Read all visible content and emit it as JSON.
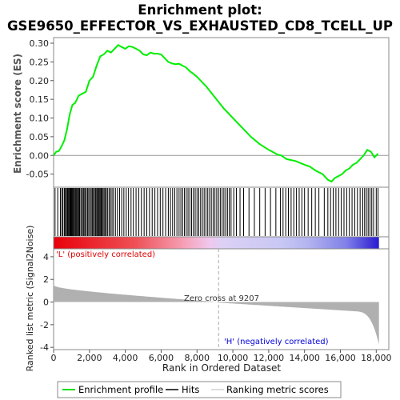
{
  "chart_data": {
    "type": "line",
    "title_line1": "Enrichment plot:",
    "title_line2": "GSE9650_EFFECTOR_VS_EXHAUSTED_CD8_TCELL_UP",
    "es_ylabel": "Enrichment score (ES)",
    "metric_ylabel": "Ranked list metric (Signal2Noise)",
    "xlabel": "Rank in Ordered Dataset",
    "xlim": [
      0,
      18700
    ],
    "es_ylim": [
      -0.085,
      0.315
    ],
    "metric_ylim": [
      -4.2,
      4.7
    ],
    "x_ticks": [
      0,
      2000,
      4000,
      6000,
      8000,
      10000,
      12000,
      14000,
      16000,
      18000
    ],
    "x_tick_labels": [
      "0",
      "2,000",
      "4,000",
      "6,000",
      "8,000",
      "10,000",
      "12,000",
      "14,000",
      "16,000",
      "18,000"
    ],
    "es_ticks": [
      -0.05,
      0.0,
      0.05,
      0.1,
      0.15,
      0.2,
      0.25,
      0.3
    ],
    "es_tick_labels": [
      "-0.05",
      "0.00",
      "0.05",
      "0.10",
      "0.15",
      "0.20",
      "0.25",
      "0.30"
    ],
    "metric_ticks": [
      -4,
      -2,
      0,
      2,
      4
    ],
    "metric_tick_labels": [
      "-4",
      "-2",
      "0",
      "2",
      "4"
    ],
    "zero_cross_rank": 9207,
    "zero_cross_label": "Zero cross at 9207",
    "pos_label": "'L' (positively correlated)",
    "neg_label": "'H' (negatively correlated)",
    "enrichment_profile": {
      "x": [
        0,
        150,
        300,
        450,
        600,
        750,
        900,
        1050,
        1200,
        1400,
        1600,
        1800,
        2000,
        2200,
        2400,
        2600,
        2800,
        3000,
        3200,
        3400,
        3600,
        3800,
        4000,
        4200,
        4400,
        4600,
        4800,
        5000,
        5200,
        5400,
        5600,
        5800,
        6000,
        6200,
        6400,
        6600,
        6800,
        7000,
        7200,
        7400,
        7600,
        7800,
        8000,
        8500,
        9000,
        9500,
        10000,
        10500,
        11000,
        11500,
        12000,
        12500,
        12700,
        13000,
        13500,
        14000,
        14300,
        14600,
        15000,
        15300,
        15500,
        15700,
        15900,
        16100,
        16300,
        16500,
        16700,
        16900,
        17100,
        17300,
        17500,
        17700,
        17900,
        18100
      ],
      "y": [
        0.0,
        0.01,
        0.012,
        0.025,
        0.04,
        0.07,
        0.11,
        0.135,
        0.14,
        0.16,
        0.165,
        0.17,
        0.2,
        0.21,
        0.24,
        0.265,
        0.27,
        0.28,
        0.275,
        0.285,
        0.295,
        0.29,
        0.285,
        0.292,
        0.29,
        0.285,
        0.28,
        0.27,
        0.268,
        0.275,
        0.272,
        0.272,
        0.27,
        0.26,
        0.25,
        0.246,
        0.244,
        0.245,
        0.24,
        0.235,
        0.225,
        0.218,
        0.21,
        0.185,
        0.155,
        0.125,
        0.1,
        0.075,
        0.05,
        0.03,
        0.015,
        0.002,
        0.0,
        -0.01,
        -0.015,
        -0.025,
        -0.03,
        -0.04,
        -0.05,
        -0.065,
        -0.07,
        -0.06,
        -0.055,
        -0.05,
        -0.04,
        -0.035,
        -0.025,
        -0.02,
        -0.01,
        0.0,
        0.015,
        0.01,
        -0.005,
        0.005
      ]
    },
    "hits": [
      80,
      230,
      380,
      460,
      520,
      600,
      660,
      700,
      760,
      800,
      850,
      900,
      940,
      980,
      1020,
      1060,
      1100,
      1150,
      1200,
      1250,
      1300,
      1350,
      1400,
      1450,
      1520,
      1580,
      1650,
      1700,
      1760,
      1830,
      1900,
      1960,
      2030,
      2100,
      2160,
      2220,
      2280,
      2340,
      2400,
      2450,
      2500,
      2550,
      2600,
      2650,
      2700,
      2760,
      2820,
      2880,
      2950,
      3020,
      3100,
      3180,
      3260,
      3340,
      3450,
      3560,
      3680,
      3800,
      3920,
      4050,
      4180,
      4320,
      4450,
      4600,
      4750,
      4900,
      5050,
      5200,
      5350,
      5500,
      5650,
      5800,
      5950,
      6100,
      6250,
      6400,
      6520,
      6640,
      6760,
      6880,
      7000,
      7100,
      7200,
      7300,
      7400,
      7500,
      7600,
      7700,
      7800,
      7900,
      8000,
      8100,
      8200,
      8300,
      8400,
      8500,
      8600,
      8700,
      8800,
      8900,
      9000,
      9100,
      9200,
      9300,
      9400,
      9500,
      9600,
      9700,
      9800,
      9900,
      10050,
      10200,
      10400,
      10600,
      10900,
      11200,
      11500,
      11800,
      12100,
      12400,
      12650,
      12800,
      12950,
      13100,
      13250,
      13400,
      13550,
      13700,
      13850,
      14000,
      14200,
      14400,
      14600,
      14800,
      15100,
      15300,
      15450,
      15600,
      15750,
      15900,
      16050,
      16200,
      16350,
      16500,
      16650,
      16800,
      16950,
      17100,
      17250,
      17350,
      17450,
      17550,
      17650,
      17750,
      17850,
      18000,
      18100
    ]
  },
  "legend": {
    "items": [
      {
        "label": "Enrichment profile",
        "color": "#00dd00"
      },
      {
        "label": "Hits",
        "color": "#000000"
      },
      {
        "label": "Ranking metric scores",
        "color": "#bbbbbb"
      }
    ]
  },
  "colors": {
    "es_line": "#00ee00",
    "pos_label": "#dd0000",
    "neg_label": "#0000dd",
    "metric_fill": "#b0b0b0"
  }
}
